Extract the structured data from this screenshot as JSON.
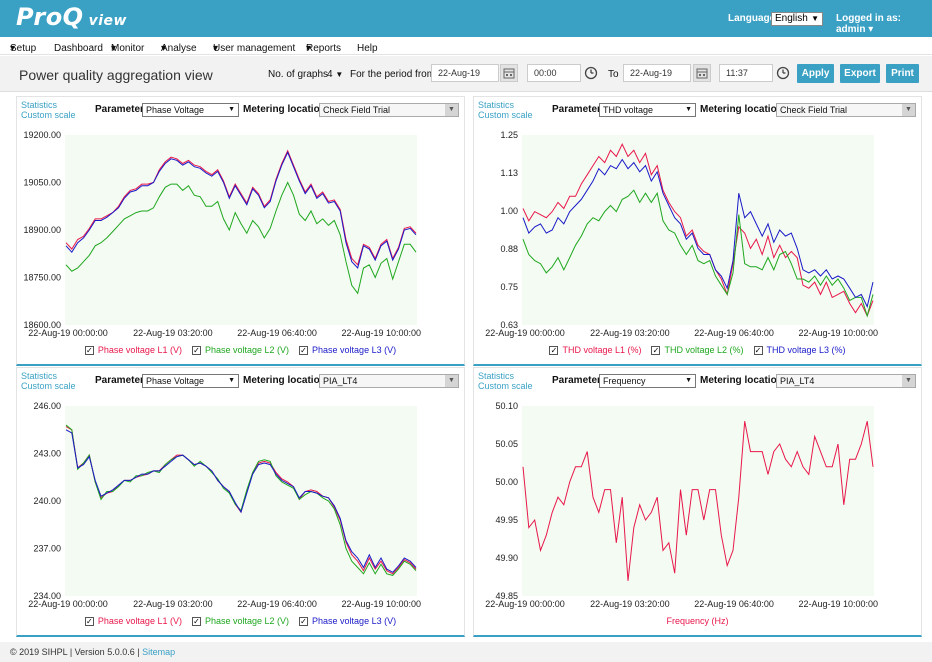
{
  "header": {
    "logo_main": "ProQ",
    "logo_sub": "view",
    "language_label": "Language:",
    "language_value": "English",
    "logged_in": "Logged in as: admin"
  },
  "menu": [
    "Setup",
    "Dashboard",
    "Monitor",
    "Analyse",
    "User management",
    "Reports",
    "Help"
  ],
  "toolbar": {
    "title": "Power quality aggregation view",
    "graphs_label": "No. of graphs",
    "graphs_value": "4",
    "period_label": "For the period from",
    "from_date": "22-Aug-19",
    "from_time": "00:00",
    "to_label": "To",
    "to_date": "22-Aug-19",
    "to_time": "11:37",
    "apply": "Apply",
    "export": "Export",
    "print": "Print"
  },
  "common": {
    "statistics": "Statistics",
    "custom_scale": "Custom scale",
    "parameter_label": "Parameter",
    "location_label": "Metering location"
  },
  "panels": [
    {
      "parameter": "Phase Voltage",
      "location": "Check Field Trial",
      "chart_data": {
        "type": "line",
        "ylim": [
          18600,
          19200
        ],
        "yticks": [
          "19200.00",
          "19050.00",
          "18900.00",
          "18750.00",
          "18600.00"
        ],
        "xticks": [
          "22-Aug-19 00:00:00",
          "22-Aug-19 03:20:00",
          "22-Aug-19 06:40:00",
          "22-Aug-19 10:00:00"
        ],
        "series": [
          {
            "name": "Phase voltage L1 (V)",
            "color": "#e8174b",
            "values": [
              18860,
              18840,
              18870,
              18880,
              18905,
              18935,
              18935,
              18945,
              18955,
              18975,
              19005,
              19025,
              19030,
              19045,
              19045,
              19050,
              19090,
              19115,
              19130,
              19125,
              19110,
              19120,
              19105,
              19100,
              19085,
              19075,
              19090,
              19055,
              19005,
              19045,
              19015,
              18985,
              19035,
              19015,
              18975,
              18995,
              19060,
              19110,
              19150,
              19105,
              19060,
              19020,
              19045,
              19005,
              19020,
              18990,
              18995,
              18965,
              18870,
              18810,
              18790,
              18855,
              18845,
              18810,
              18855,
              18870,
              18810,
              18845,
              18905,
              18910,
              18890
            ]
          },
          {
            "name": "Phase voltage L2 (V)",
            "color": "#1fa71f",
            "values": [
              18790,
              18770,
              18780,
              18800,
              18820,
              18850,
              18860,
              18875,
              18895,
              18915,
              18935,
              18945,
              18955,
              18960,
              18960,
              18970,
              19005,
              19035,
              19045,
              19045,
              19025,
              19040,
              19010,
              19005,
              18975,
              18975,
              18990,
              18935,
              18900,
              18955,
              18920,
              18890,
              18930,
              18910,
              18875,
              18905,
              18960,
              19010,
              19050,
              19010,
              18950,
              18930,
              18960,
              18920,
              18935,
              18915,
              18930,
              18885,
              18800,
              18725,
              18700,
              18780,
              18790,
              18750,
              18795,
              18810,
              18745,
              18800,
              18855,
              18855,
              18830
            ]
          },
          {
            "name": "Phase voltage L3 (V)",
            "color": "#1a1ac8",
            "values": [
              18850,
              18830,
              18860,
              18875,
              18900,
              18930,
              18930,
              18940,
              18955,
              18970,
              19000,
              19020,
              19025,
              19040,
              19040,
              19050,
              19085,
              19110,
              19125,
              19120,
              19105,
              19115,
              19100,
              19095,
              19080,
              19070,
              19085,
              19050,
              19000,
              19040,
              19010,
              18980,
              19030,
              19010,
              18970,
              18990,
              19055,
              19105,
              19145,
              19100,
              19055,
              19015,
              19040,
              19000,
              19015,
              18985,
              18990,
              18960,
              18860,
              18800,
              18780,
              18850,
              18840,
              18805,
              18850,
              18865,
              18805,
              18840,
              18900,
              18905,
              18885
            ]
          }
        ]
      }
    },
    {
      "parameter": "THD voltage",
      "location": "Check Field Trial",
      "chart_data": {
        "type": "line",
        "ylim": [
          0.63,
          1.25
        ],
        "yticks": [
          "1.25",
          "1.13",
          "1.00",
          "0.88",
          "0.75",
          "0.63"
        ],
        "xticks": [
          "22-Aug-19 00:00:00",
          "22-Aug-19 03:20:00",
          "22-Aug-19 06:40:00",
          "22-Aug-19 10:00:00"
        ],
        "series": [
          {
            "name": "THD voltage L1 (%)",
            "color": "#e8174b",
            "values": [
              1.01,
              0.97,
              1.0,
              0.99,
              0.98,
              1.0,
              1.03,
              1.01,
              1.05,
              1.05,
              1.09,
              1.12,
              1.15,
              1.18,
              1.16,
              1.2,
              1.18,
              1.22,
              1.18,
              1.2,
              1.16,
              1.19,
              1.12,
              1.15,
              1.07,
              1.03,
              1.0,
              0.98,
              0.92,
              0.94,
              0.89,
              0.87,
              0.86,
              0.81,
              0.78,
              0.73,
              0.83,
              0.95,
              0.93,
              0.88,
              0.91,
              0.86,
              0.92,
              0.85,
              0.89,
              0.85,
              0.87,
              0.85,
              0.76,
              0.75,
              0.77,
              0.73,
              0.77,
              0.72,
              0.73,
              0.74,
              0.7,
              0.67,
              0.7,
              0.66,
              0.71
            ]
          },
          {
            "name": "THD voltage L2 (%)",
            "color": "#1fa71f",
            "values": [
              0.91,
              0.86,
              0.84,
              0.83,
              0.8,
              0.82,
              0.85,
              0.81,
              0.85,
              0.89,
              0.92,
              0.96,
              0.98,
              0.97,
              1.0,
              1.02,
              1.0,
              1.04,
              1.05,
              1.07,
              1.03,
              1.06,
              1.03,
              1.06,
              0.97,
              0.94,
              0.93,
              0.89,
              0.86,
              0.89,
              0.84,
              0.83,
              0.84,
              0.79,
              0.76,
              0.73,
              0.8,
              0.99,
              0.83,
              0.82,
              0.82,
              0.81,
              0.85,
              0.81,
              0.86,
              0.87,
              0.83,
              0.78,
              0.78,
              0.77,
              0.79,
              0.76,
              0.79,
              0.76,
              0.78,
              0.75,
              0.71,
              0.72,
              0.72,
              0.66,
              0.73
            ]
          },
          {
            "name": "THD voltage L3 (%)",
            "color": "#1a1ac8",
            "values": [
              0.98,
              0.93,
              0.95,
              0.96,
              0.93,
              0.94,
              0.98,
              0.96,
              1.0,
              1.02,
              1.04,
              1.07,
              1.1,
              1.14,
              1.12,
              1.15,
              1.14,
              1.17,
              1.14,
              1.16,
              1.13,
              1.15,
              1.1,
              1.13,
              1.06,
              1.02,
              0.98,
              0.96,
              0.91,
              0.93,
              0.88,
              0.86,
              0.86,
              0.81,
              0.79,
              0.75,
              0.84,
              1.06,
              0.98,
              1.0,
              0.96,
              0.92,
              0.96,
              0.9,
              0.94,
              0.92,
              0.93,
              0.88,
              0.81,
              0.8,
              0.81,
              0.79,
              0.81,
              0.78,
              0.79,
              0.78,
              0.75,
              0.72,
              0.73,
              0.69,
              0.77
            ]
          }
        ]
      }
    },
    {
      "parameter": "Phase Voltage",
      "location": "PIA_LT4",
      "chart_data": {
        "type": "line",
        "ylim": [
          234,
          246
        ],
        "yticks": [
          "246.00",
          "243.00",
          "240.00",
          "237.00",
          "234.00"
        ],
        "xticks": [
          "22-Aug-19 00:00:00",
          "22-Aug-19 03:20:00",
          "22-Aug-19 06:40:00",
          "22-Aug-19 10:00:00"
        ],
        "series": [
          {
            "name": "Phase voltage L1 (V)",
            "color": "#e8174b",
            "values": [
              244.7,
              244.5,
              242.1,
              242.4,
              242.9,
              241.2,
              240.2,
              240.5,
              240.6,
              241.0,
              241.3,
              241.3,
              241.5,
              241.6,
              241.7,
              241.9,
              241.9,
              242.3,
              242.6,
              242.9,
              242.9,
              242.6,
              242.3,
              242.4,
              242.2,
              241.9,
              241.3,
              240.9,
              240.6,
              239.8,
              239.3,
              240.6,
              241.8,
              242.4,
              242.5,
              242.4,
              241.8,
              241.4,
              241.2,
              240.9,
              240.1,
              240.6,
              240.7,
              240.6,
              240.3,
              240.2,
              239.6,
              238.8,
              237.4,
              236.6,
              236.2,
              235.6,
              236.4,
              235.7,
              236.2,
              235.6,
              235.4,
              235.8,
              236.3,
              236.1,
              235.7
            ]
          },
          {
            "name": "Phase voltage L2 (V)",
            "color": "#1fa71f",
            "values": [
              244.8,
              244.5,
              242.0,
              242.4,
              242.9,
              241.2,
              240.1,
              240.6,
              240.6,
              240.9,
              241.3,
              241.2,
              241.6,
              241.6,
              241.8,
              241.9,
              241.8,
              242.3,
              242.6,
              242.8,
              242.9,
              242.6,
              242.2,
              242.5,
              242.2,
              241.8,
              241.4,
              240.8,
              240.5,
              239.8,
              239.4,
              240.7,
              241.8,
              242.5,
              242.6,
              242.5,
              241.6,
              241.2,
              241.0,
              240.8,
              240.1,
              240.4,
              240.6,
              240.5,
              240.2,
              240.0,
              239.5,
              238.5,
              237.0,
              236.2,
              235.8,
              235.4,
              236.1,
              235.4,
              236.0,
              235.4,
              235.3,
              235.7,
              236.2,
              236.0,
              235.6
            ]
          },
          {
            "name": "Phase voltage L3 (V)",
            "color": "#1a1ac8",
            "values": [
              244.5,
              244.3,
              242.1,
              242.3,
              242.8,
              241.3,
              240.3,
              240.5,
              240.7,
              241.0,
              241.3,
              241.3,
              241.5,
              241.7,
              241.7,
              241.9,
              241.9,
              242.2,
              242.5,
              242.8,
              242.9,
              242.6,
              242.3,
              242.4,
              242.2,
              241.9,
              241.3,
              240.9,
              240.6,
              239.9,
              239.3,
              240.5,
              241.7,
              242.3,
              242.4,
              242.3,
              241.7,
              241.3,
              241.1,
              240.9,
              240.2,
              240.6,
              240.6,
              240.5,
              240.3,
              240.2,
              239.7,
              238.9,
              237.5,
              236.8,
              236.4,
              235.8,
              236.6,
              235.8,
              236.4,
              235.7,
              235.5,
              235.9,
              236.4,
              236.2,
              235.8
            ]
          }
        ]
      }
    },
    {
      "parameter": "Frequency",
      "location": "PIA_LT4",
      "chart_data": {
        "type": "line",
        "ylim": [
          49.85,
          50.1
        ],
        "yticks": [
          "50.10",
          "50.05",
          "50.00",
          "49.95",
          "49.90",
          "49.85"
        ],
        "xticks": [
          "22-Aug-19 00:00:00",
          "22-Aug-19 03:20:00",
          "22-Aug-19 06:40:00",
          "22-Aug-19 10:00:00"
        ],
        "series": [
          {
            "name": "Frequency (Hz)",
            "color": "#e8174b",
            "values": [
              50.02,
              49.94,
              49.95,
              49.91,
              49.93,
              49.96,
              49.98,
              49.97,
              50.0,
              50.02,
              50.02,
              50.04,
              49.98,
              49.96,
              49.99,
              49.99,
              49.92,
              49.98,
              49.87,
              49.94,
              49.97,
              49.95,
              49.96,
              49.98,
              49.91,
              49.92,
              49.88,
              49.99,
              49.93,
              49.99,
              49.99,
              49.95,
              49.99,
              49.99,
              49.93,
              49.89,
              49.91,
              49.98,
              50.08,
              50.04,
              50.04,
              50.04,
              50.01,
              50.04,
              50.05,
              50.03,
              50.02,
              50.04,
              50.02,
              50.01,
              50.06,
              50.04,
              50.02,
              50.02,
              50.05,
              49.97,
              50.03,
              50.03,
              50.05,
              50.08,
              50.02
            ]
          }
        ]
      }
    }
  ],
  "footer": {
    "text": "© 2019 SIHPL   |   Version 5.0.0.6   |",
    "sitemap": "Sitemap"
  }
}
